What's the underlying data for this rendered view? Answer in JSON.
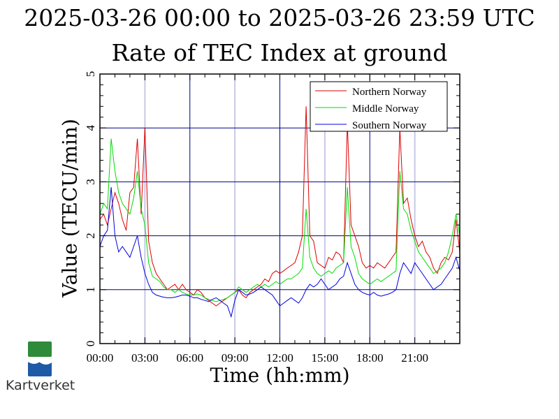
{
  "chart_data": {
    "type": "line",
    "title": "2025-03-26 00:00 to 2025-03-26 23:59 UTC",
    "subtitle": "Rate of TEC Index at ground",
    "xlabel": "Time (hh:mm)",
    "ylabel": "Value (TECU/min)",
    "x_ticks": [
      "00:00",
      "03:00",
      "06:00",
      "09:00",
      "12:00",
      "15:00",
      "18:00",
      "21:00"
    ],
    "y_ticks": [
      "0",
      "1",
      "2",
      "3",
      "4",
      "5"
    ],
    "xlim": [
      0,
      24
    ],
    "ylim": [
      0,
      5
    ],
    "grid": true,
    "legend_position": "top-right",
    "x_hours": [
      0,
      0.25,
      0.5,
      0.75,
      1,
      1.25,
      1.5,
      1.75,
      2,
      2.25,
      2.5,
      2.75,
      3,
      3.25,
      3.5,
      3.75,
      4,
      4.25,
      4.5,
      4.75,
      5,
      5.25,
      5.5,
      5.75,
      6,
      6.25,
      6.5,
      6.75,
      7,
      7.25,
      7.5,
      7.75,
      8,
      8.25,
      8.5,
      8.75,
      9,
      9.25,
      9.5,
      9.75,
      10,
      10.25,
      10.5,
      10.75,
      11,
      11.25,
      11.5,
      11.75,
      12,
      12.25,
      12.5,
      12.75,
      13,
      13.25,
      13.5,
      13.75,
      14,
      14.25,
      14.5,
      14.75,
      15,
      15.25,
      15.5,
      15.75,
      16,
      16.25,
      16.5,
      16.75,
      17,
      17.25,
      17.5,
      17.75,
      18,
      18.25,
      18.5,
      18.75,
      19,
      19.25,
      19.5,
      19.75,
      20,
      20.25,
      20.5,
      20.75,
      21,
      21.25,
      21.5,
      21.75,
      22,
      22.25,
      22.5,
      22.75,
      23,
      23.25,
      23.5,
      23.75,
      24
    ],
    "series": [
      {
        "name": "Northern Norway",
        "color": "#dd0000",
        "values": [
          2.3,
          2.4,
          2.2,
          2.5,
          2.8,
          2.6,
          2.3,
          2.1,
          2.8,
          2.9,
          3.8,
          2.4,
          4.0,
          1.9,
          1.5,
          1.3,
          1.2,
          1.1,
          1.0,
          1.05,
          1.1,
          1.0,
          1.1,
          1.0,
          0.95,
          0.9,
          1.0,
          0.95,
          0.85,
          0.8,
          0.75,
          0.7,
          0.75,
          0.8,
          0.85,
          0.9,
          0.95,
          1.0,
          0.9,
          0.85,
          0.95,
          1.0,
          1.05,
          1.1,
          1.2,
          1.15,
          1.3,
          1.35,
          1.3,
          1.35,
          1.4,
          1.45,
          1.5,
          1.7,
          2.0,
          4.4,
          2.0,
          1.9,
          1.5,
          1.45,
          1.4,
          1.6,
          1.55,
          1.7,
          1.65,
          1.5,
          4.1,
          2.2,
          2.0,
          1.8,
          1.5,
          1.4,
          1.45,
          1.4,
          1.5,
          1.45,
          1.4,
          1.5,
          1.6,
          1.7,
          4.0,
          2.6,
          2.7,
          2.3,
          2.0,
          1.8,
          1.9,
          1.7,
          1.6,
          1.4,
          1.3,
          1.5,
          1.6,
          1.55,
          1.7,
          2.3,
          1.7
        ]
      },
      {
        "name": "Middle Norway",
        "color": "#00dd00",
        "values": [
          2.4,
          2.6,
          2.5,
          3.8,
          3.2,
          2.8,
          2.6,
          2.5,
          2.4,
          2.7,
          3.2,
          2.5,
          2.2,
          1.5,
          1.25,
          1.2,
          1.15,
          1.05,
          1.0,
          1.0,
          0.95,
          1.0,
          0.95,
          0.92,
          0.9,
          0.9,
          0.92,
          0.9,
          0.85,
          0.82,
          0.8,
          0.78,
          0.8,
          0.82,
          0.85,
          0.9,
          0.95,
          1.05,
          1.0,
          0.95,
          1.0,
          1.05,
          1.1,
          1.05,
          1.1,
          1.05,
          1.1,
          1.15,
          1.1,
          1.15,
          1.2,
          1.2,
          1.25,
          1.3,
          1.4,
          2.5,
          1.6,
          1.4,
          1.3,
          1.25,
          1.3,
          1.35,
          1.3,
          1.4,
          1.45,
          1.5,
          2.9,
          1.8,
          1.6,
          1.3,
          1.2,
          1.15,
          1.1,
          1.15,
          1.2,
          1.15,
          1.2,
          1.25,
          1.3,
          1.35,
          3.2,
          2.5,
          2.4,
          2.1,
          1.9,
          1.7,
          1.6,
          1.5,
          1.4,
          1.3,
          1.35,
          1.4,
          1.5,
          1.7,
          2.0,
          2.4,
          2.0
        ]
      },
      {
        "name": "Southern Norway",
        "color": "#0000dd",
        "values": [
          1.8,
          2.0,
          2.1,
          2.9,
          2.0,
          1.7,
          1.8,
          1.7,
          1.6,
          1.8,
          2.0,
          1.6,
          1.3,
          1.1,
          0.95,
          0.9,
          0.88,
          0.86,
          0.85,
          0.85,
          0.86,
          0.88,
          0.9,
          0.9,
          0.88,
          0.85,
          0.85,
          0.82,
          0.8,
          0.78,
          0.82,
          0.85,
          0.8,
          0.75,
          0.7,
          0.5,
          0.8,
          1.0,
          0.95,
          0.9,
          0.92,
          0.95,
          1.0,
          1.05,
          1.0,
          0.95,
          0.9,
          0.8,
          0.7,
          0.75,
          0.8,
          0.85,
          0.8,
          0.75,
          0.85,
          1.0,
          1.1,
          1.05,
          1.1,
          1.2,
          1.1,
          1.0,
          1.05,
          1.1,
          1.2,
          1.25,
          1.5,
          1.3,
          1.1,
          1.0,
          0.95,
          0.92,
          0.9,
          0.95,
          0.9,
          0.88,
          0.9,
          0.92,
          0.95,
          1.0,
          1.3,
          1.5,
          1.4,
          1.3,
          1.5,
          1.4,
          1.3,
          1.2,
          1.1,
          1.0,
          1.05,
          1.1,
          1.2,
          1.3,
          1.4,
          1.6,
          1.35
        ]
      }
    ]
  },
  "branding": {
    "logo_text": "Kartverket",
    "logo_colors": {
      "green": "#2e8b3a",
      "blue": "#1f5aa6"
    }
  },
  "colors": {
    "grid_major": "#000080",
    "grid_minor": "#c8c8e6",
    "axis": "#000000"
  }
}
